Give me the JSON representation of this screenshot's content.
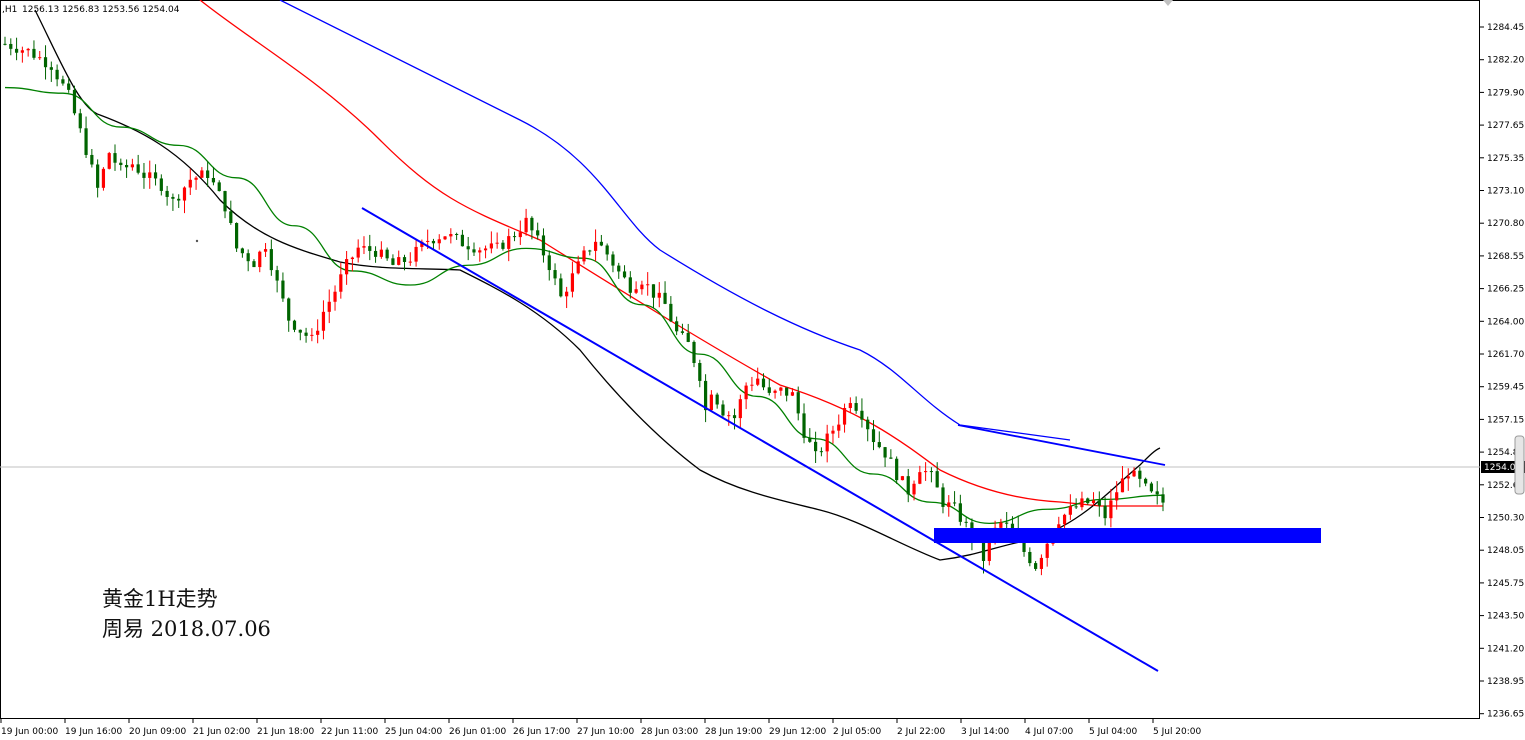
{
  "header": {
    "symbol_tf": ",H1",
    "ohlc": "1256.13 1256.83 1253.56 1254.04"
  },
  "annotation": {
    "line1": "黄金1H走势",
    "line2": "周易   2018.07.06"
  },
  "chart_data": {
    "type": "candlestick",
    "y_axis_labels": [
      "1284.45",
      "1282.20",
      "1279.90",
      "1277.65",
      "1275.35",
      "1273.10",
      "1270.80",
      "1268.55",
      "1266.25",
      "1264.00",
      "1261.70",
      "1259.45",
      "1257.15",
      "1254.85",
      "1252.60",
      "1250.30",
      "1248.05",
      "1245.75",
      "1243.50",
      "1241.20",
      "1238.95",
      "1236.65"
    ],
    "x_axis_labels": [
      "19 Jun 00:00",
      "19 Jun 16:00",
      "20 Jun 09:00",
      "21 Jun 02:00",
      "21 Jun 18:00",
      "22 Jun 11:00",
      "25 Jun 04:00",
      "26 Jun 01:00",
      "26 Jun 17:00",
      "27 Jun 10:00",
      "28 Jun 03:00",
      "28 Jun 19:00",
      "29 Jun 12:00",
      "2 Jul 05:00",
      "2 Jul 22:00",
      "3 Jul 14:00",
      "4 Jul 07:00",
      "5 Jul 04:00",
      "5 Jul 20:00"
    ],
    "ylim": [
      1235.7,
      1285.9
    ],
    "n_bars": 201,
    "last_price": "1254.04",
    "bar_path": [
      [
        0,
        1283.5
      ],
      [
        4,
        1283.0
      ],
      [
        8,
        1282.0
      ],
      [
        11,
        1279.8
      ],
      [
        14,
        1276.0
      ],
      [
        16,
        1273.2
      ],
      [
        18,
        1275.8
      ],
      [
        20,
        1274.5
      ],
      [
        22,
        1275.0
      ],
      [
        24,
        1274.2
      ],
      [
        27,
        1273.5
      ],
      [
        29,
        1272.3
      ],
      [
        32,
        1273.9
      ],
      [
        35,
        1274.3
      ],
      [
        38,
        1272.0
      ],
      [
        40,
        1269.0
      ],
      [
        43,
        1268.0
      ],
      [
        45,
        1269.3
      ],
      [
        47,
        1266.5
      ],
      [
        49,
        1264.0
      ],
      [
        51,
        1263.2
      ],
      [
        53,
        1262.5
      ],
      [
        55,
        1264.5
      ],
      [
        57,
        1266.0
      ],
      [
        59,
        1267.8
      ],
      [
        61,
        1269.0
      ],
      [
        64,
        1268.8
      ],
      [
        67,
        1267.8
      ],
      [
        70,
        1268.3
      ],
      [
        73,
        1269.6
      ],
      [
        76,
        1270.0
      ],
      [
        79,
        1269.4
      ],
      [
        82,
        1269.0
      ],
      [
        85,
        1269.0
      ],
      [
        88,
        1270.0
      ],
      [
        90,
        1270.9
      ],
      [
        92,
        1269.5
      ],
      [
        94,
        1267.8
      ],
      [
        96,
        1265.5
      ],
      [
        98,
        1267.0
      ],
      [
        100,
        1268.5
      ],
      [
        102,
        1269.6
      ],
      [
        104,
        1268.6
      ],
      [
        106,
        1267.3
      ],
      [
        108,
        1266.3
      ],
      [
        110,
        1266.8
      ],
      [
        112,
        1265.8
      ],
      [
        114,
        1265.0
      ],
      [
        116,
        1263.0
      ],
      [
        118,
        1262.2
      ],
      [
        120,
        1260.0
      ],
      [
        121,
        1257.5
      ],
      [
        122,
        1259.0
      ],
      [
        124,
        1257.5
      ],
      [
        126,
        1257.0
      ],
      [
        128,
        1259.3
      ],
      [
        130,
        1259.8
      ],
      [
        132,
        1258.5
      ],
      [
        134,
        1258.9
      ],
      [
        136,
        1258.6
      ],
      [
        138,
        1256.0
      ],
      [
        140,
        1254.2
      ],
      [
        142,
        1255.5
      ],
      [
        144,
        1256.8
      ],
      [
        146,
        1258.4
      ],
      [
        148,
        1257.3
      ],
      [
        150,
        1255.5
      ],
      [
        152,
        1254.5
      ],
      [
        154,
        1253.0
      ],
      [
        156,
        1251.8
      ],
      [
        158,
        1253.5
      ],
      [
        160,
        1252.8
      ],
      [
        162,
        1251.0
      ],
      [
        164,
        1250.5
      ],
      [
        166,
        1249.3
      ],
      [
        168,
        1248.0
      ],
      [
        169,
        1247.0
      ],
      [
        170,
        1248.5
      ],
      [
        172,
        1249.5
      ],
      [
        174,
        1249.0
      ],
      [
        176,
        1247.5
      ],
      [
        178,
        1246.5
      ],
      [
        180,
        1248.2
      ],
      [
        182,
        1249.8
      ],
      [
        184,
        1250.4
      ],
      [
        186,
        1250.9
      ],
      [
        188,
        1251.0
      ],
      [
        190,
        1250.0
      ],
      [
        192,
        1251.8
      ],
      [
        194,
        1253.2
      ],
      [
        196,
        1252.4
      ],
      [
        198,
        1251.5
      ],
      [
        200,
        1251.0
      ]
    ],
    "bar_path_note": "",
    "series": [
      {
        "color": "#008000",
        "points": [
          [
            0,
            1280.4
          ],
          [
            10,
            1280.0
          ],
          [
            20,
            1277.6
          ],
          [
            30,
            1276.3
          ],
          [
            40,
            1274.0
          ],
          [
            50,
            1270.6
          ],
          [
            60,
            1267.4
          ],
          [
            70,
            1266.4
          ],
          [
            80,
            1267.8
          ],
          [
            90,
            1269.0
          ],
          [
            100,
            1268.3
          ],
          [
            110,
            1265.0
          ],
          [
            120,
            1261.5
          ],
          [
            130,
            1258.5
          ],
          [
            140,
            1255.5
          ],
          [
            150,
            1253.0
          ],
          [
            160,
            1251.0
          ],
          [
            170,
            1249.5
          ],
          [
            180,
            1250.5
          ],
          [
            190,
            1251.2
          ],
          [
            200,
            1251.5
          ]
        ]
      }
    ]
  }
}
